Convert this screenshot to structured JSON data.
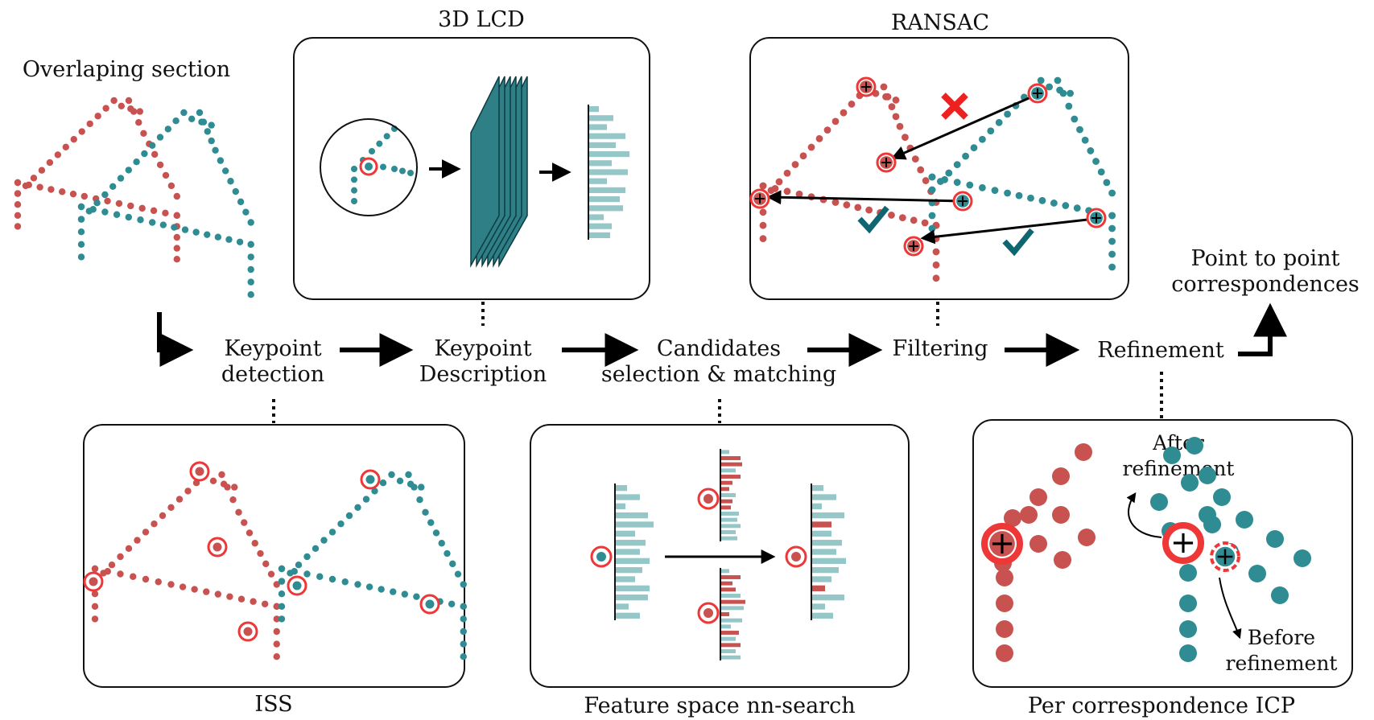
{
  "texts": {
    "overlap": "Overlaping section",
    "lcd_title": "3D LCD",
    "ransac_title": "RANSAC",
    "ptp_1": "Point to point",
    "ptp_2": "correspondences",
    "kd_1": "Keypoint",
    "kd_2": "detection",
    "kdesc_1": "Keypoint",
    "kdesc_2": "Description",
    "cand_1": "Candidates",
    "cand_2": "selection & matching",
    "filtering": "Filtering",
    "refinement": "Refinement",
    "iss": "ISS",
    "fsnn": "Feature space nn-search",
    "icp": "Per correspondence ICP",
    "after_1": "After",
    "after_2": "refinement",
    "before_1": "Before",
    "before_2": "refinement"
  },
  "colors": {
    "red": "#c85250",
    "teal": "#2e8c92",
    "light_teal": "#95c6c8",
    "circle": "#ee3737",
    "dark_teal": "#0e6670",
    "network": "#2f7f87"
  },
  "icons": [
    "cross-icon",
    "check-icon",
    "arrow-icon",
    "plus-icon"
  ]
}
